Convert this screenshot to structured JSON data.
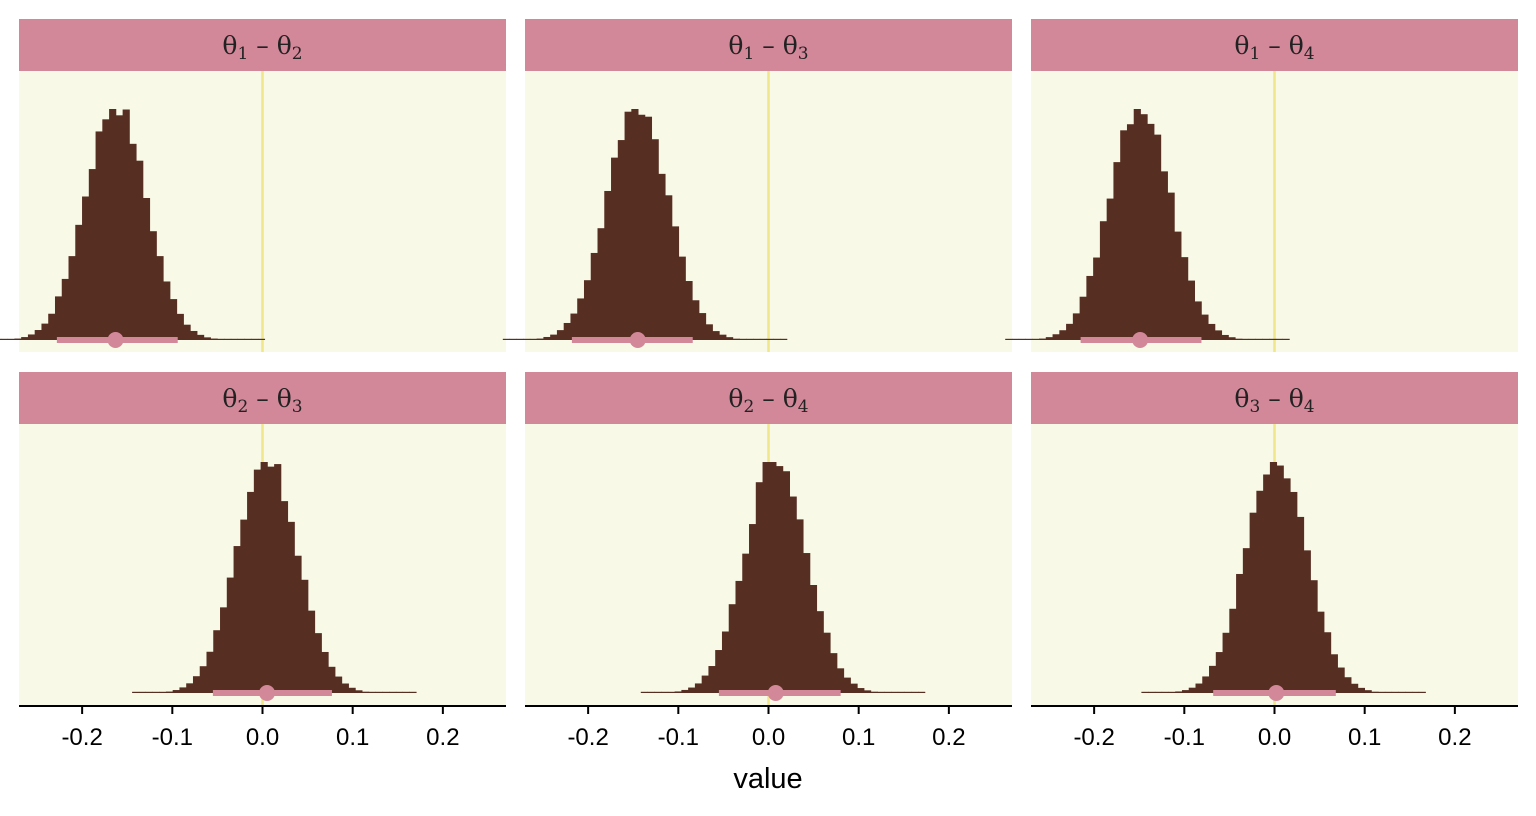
{
  "chart_data": {
    "type": "histogram",
    "layout": "facet grid, 2 rows x 3 columns",
    "xlabel": "value",
    "ylabel": "",
    "xlim": [
      -0.27,
      0.27
    ],
    "x_ticks": [
      -0.2,
      -0.1,
      0.0,
      0.1,
      0.2
    ],
    "x_tick_labels": [
      "-0.2",
      "-0.1",
      "0.0",
      "0.1",
      "0.2"
    ],
    "reference_line_x": 0,
    "bin_width": 0.0075,
    "grid": false,
    "colors": {
      "bars": "#562e22",
      "panel_background": "#f9f9e7",
      "strip_background": "#d3889a",
      "interval": "#d3889a",
      "reference_line": "#f0e68c"
    },
    "panels": [
      {
        "label_parts": [
          [
            "θ",
            "1"
          ],
          [
            "θ",
            "2"
          ]
        ],
        "point_estimate": -0.163,
        "interval": [
          -0.228,
          -0.094
        ],
        "sd": 0.034
      },
      {
        "label_parts": [
          [
            "θ",
            "1"
          ],
          [
            "θ",
            "3"
          ]
        ],
        "point_estimate": -0.145,
        "interval": [
          -0.218,
          -0.084
        ],
        "sd": 0.034
      },
      {
        "label_parts": [
          [
            "θ",
            "1"
          ],
          [
            "θ",
            "4"
          ]
        ],
        "point_estimate": -0.149,
        "interval": [
          -0.215,
          -0.081
        ],
        "sd": 0.034
      },
      {
        "label_parts": [
          [
            "θ",
            "2"
          ],
          [
            "θ",
            "3"
          ]
        ],
        "point_estimate": 0.005,
        "interval": [
          -0.055,
          0.077
        ],
        "sd": 0.034
      },
      {
        "label_parts": [
          [
            "θ",
            "2"
          ],
          [
            "θ",
            "4"
          ]
        ],
        "point_estimate": 0.008,
        "interval": [
          -0.055,
          0.08
        ],
        "sd": 0.034
      },
      {
        "label_parts": [
          [
            "θ",
            "3"
          ],
          [
            "θ",
            "4"
          ]
        ],
        "point_estimate": 0.002,
        "interval": [
          -0.068,
          0.068
        ],
        "sd": 0.034
      }
    ]
  }
}
